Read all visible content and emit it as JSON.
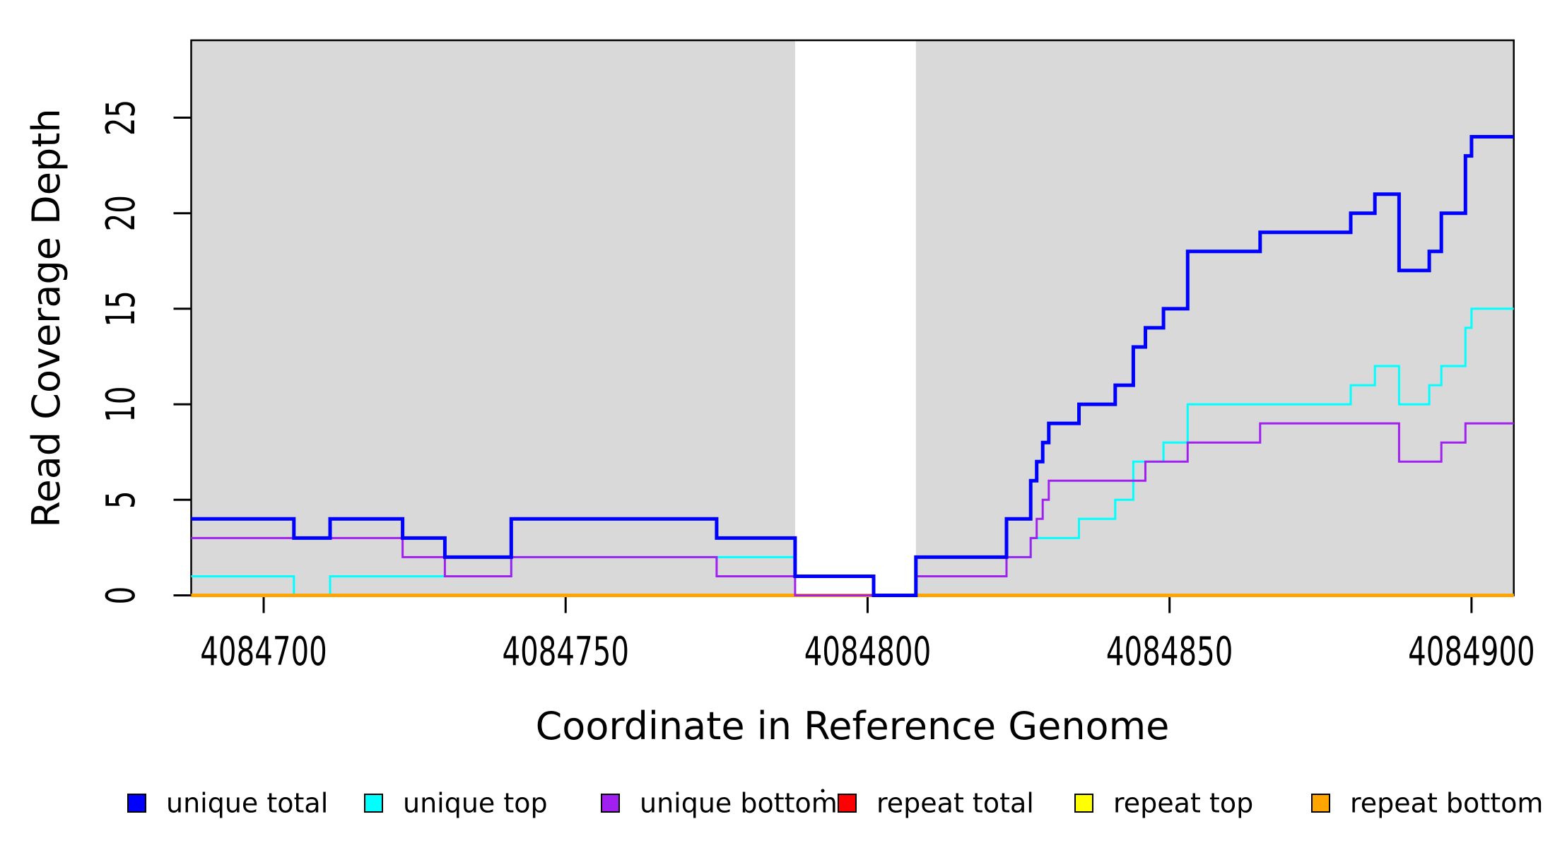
{
  "chart_data": {
    "type": "line",
    "subtype": "step",
    "xlabel": "Coordinate in Reference Genome",
    "ylabel": "Read Coverage Depth",
    "xlim": [
      4084688,
      4084907
    ],
    "ylim": [
      0,
      29.05
    ],
    "grid": false,
    "background_color": "#ffffff",
    "shade_color": "#d9d9d9",
    "shaded_regions": [
      {
        "x0": 4084688,
        "x1": 4084788
      },
      {
        "x0": 4084808,
        "x1": 4084907
      }
    ],
    "x_ticks": {
      "values": [
        4084700,
        4084750,
        4084800,
        4084850,
        4084900
      ],
      "labels": [
        "4084700",
        "4084750",
        "4084800",
        "4084850",
        "4084900"
      ]
    },
    "y_ticks": {
      "values": [
        0,
        5,
        10,
        15,
        20,
        25
      ],
      "labels": [
        "0",
        "5",
        "10",
        "15",
        "20",
        "25"
      ]
    },
    "legend_position": "bottom",
    "series": [
      {
        "name": "unique total",
        "color": "#0000ff",
        "line_width": 5,
        "draw_order": 6,
        "points": [
          [
            4084688,
            4
          ],
          [
            4084705,
            3
          ],
          [
            4084711,
            4
          ],
          [
            4084723,
            3
          ],
          [
            4084730,
            2
          ],
          [
            4084741,
            4
          ],
          [
            4084775,
            3
          ],
          [
            4084788,
            1
          ],
          [
            4084801,
            0
          ],
          [
            4084808,
            2
          ],
          [
            4084823,
            4
          ],
          [
            4084827,
            6
          ],
          [
            4084828,
            7
          ],
          [
            4084829,
            8
          ],
          [
            4084830,
            9
          ],
          [
            4084835,
            10
          ],
          [
            4084841,
            11
          ],
          [
            4084844,
            13
          ],
          [
            4084846,
            14
          ],
          [
            4084849,
            15
          ],
          [
            4084853,
            18
          ],
          [
            4084865,
            19
          ],
          [
            4084880,
            20
          ],
          [
            4084884,
            21
          ],
          [
            4084888,
            17
          ],
          [
            4084893,
            18
          ],
          [
            4084895,
            20
          ],
          [
            4084899,
            23
          ],
          [
            4084900,
            24
          ]
        ]
      },
      {
        "name": "unique top",
        "color": "#00ffff",
        "line_width": 3,
        "draw_order": 3,
        "points": [
          [
            4084688,
            1
          ],
          [
            4084705,
            0
          ],
          [
            4084711,
            1
          ],
          [
            4084741,
            2
          ],
          [
            4084788,
            1
          ],
          [
            4084801,
            0
          ],
          [
            4084808,
            1
          ],
          [
            4084823,
            2
          ],
          [
            4084827,
            3
          ],
          [
            4084835,
            4
          ],
          [
            4084841,
            5
          ],
          [
            4084844,
            7
          ],
          [
            4084849,
            8
          ],
          [
            4084853,
            10
          ],
          [
            4084880,
            11
          ],
          [
            4084884,
            12
          ],
          [
            4084888,
            10
          ],
          [
            4084893,
            11
          ],
          [
            4084895,
            12
          ],
          [
            4084899,
            14
          ],
          [
            4084900,
            15
          ]
        ]
      },
      {
        "name": "unique bottom",
        "color": "#a020f0",
        "line_width": 3,
        "draw_order": 5,
        "points": [
          [
            4084688,
            3
          ],
          [
            4084723,
            2
          ],
          [
            4084730,
            1
          ],
          [
            4084741,
            2
          ],
          [
            4084775,
            1
          ],
          [
            4084788,
            0
          ],
          [
            4084808,
            1
          ],
          [
            4084823,
            2
          ],
          [
            4084827,
            3
          ],
          [
            4084828,
            4
          ],
          [
            4084829,
            5
          ],
          [
            4084830,
            6
          ],
          [
            4084846,
            7
          ],
          [
            4084853,
            8
          ],
          [
            4084865,
            9
          ],
          [
            4084888,
            7
          ],
          [
            4084895,
            8
          ],
          [
            4084899,
            9
          ]
        ]
      },
      {
        "name": "repeat total",
        "color": "#ff0000",
        "line_width": 3,
        "draw_order": 1,
        "points": [
          [
            4084688,
            0
          ]
        ]
      },
      {
        "name": "repeat top",
        "color": "#ffff00",
        "line_width": 3,
        "draw_order": 2,
        "points": [
          [
            4084688,
            0
          ]
        ]
      },
      {
        "name": "repeat bottom",
        "color": "#ffa500",
        "line_width": 5,
        "draw_order": 4,
        "points": [
          [
            4084688,
            0
          ]
        ]
      }
    ]
  }
}
